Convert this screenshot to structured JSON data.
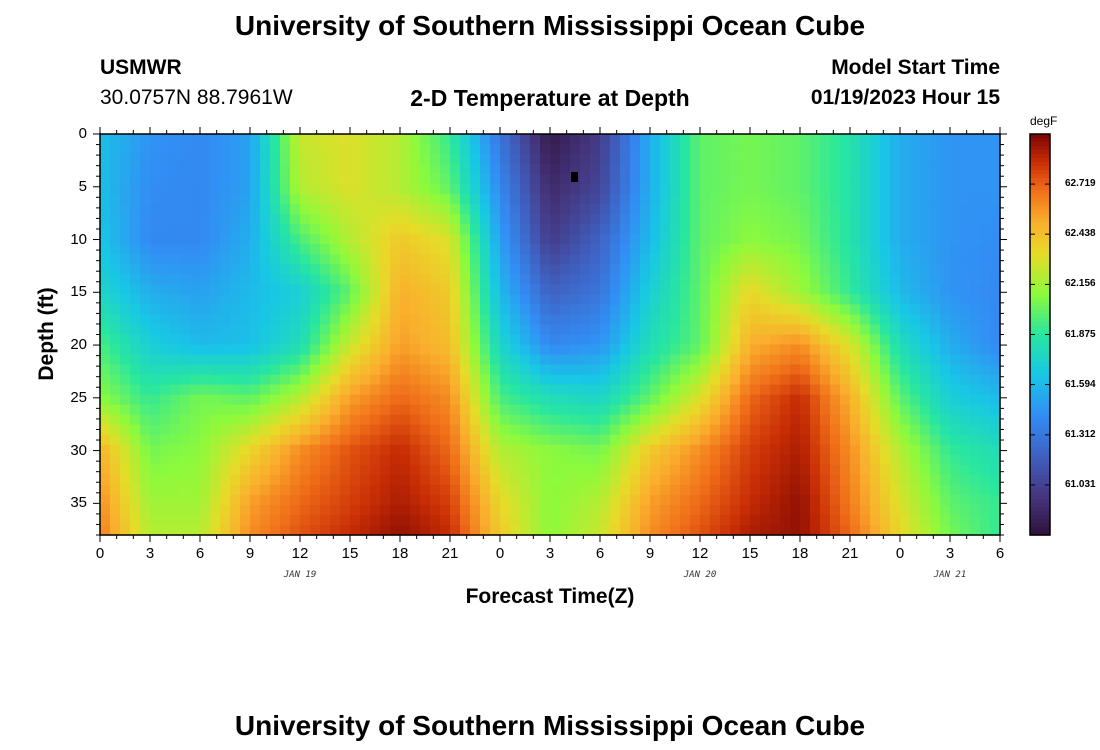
{
  "header": {
    "title_top": "University of Southern Mississippi Ocean Cube",
    "title_bottom": "University of Southern Mississippi Ocean Cube",
    "station": "USMWR",
    "coords": "30.0757N  88.7961W",
    "plot_title": "2-D Temperature at Depth",
    "model_start_label": "Model Start Time",
    "model_start_value": "01/19/2023 Hour 15"
  },
  "chart_data": {
    "type": "heatmap",
    "title": "2-D Temperature at Depth",
    "xlabel": "Forecast Time(Z)",
    "ylabel": "Depth (ft)",
    "x_tick_labels": [
      "0",
      "3",
      "6",
      "9",
      "12",
      "15",
      "18",
      "21",
      "0",
      "3",
      "6",
      "9",
      "12",
      "15",
      "18",
      "21",
      "0",
      "3",
      "6"
    ],
    "x_hours_since_start": [
      0,
      3,
      6,
      9,
      12,
      15,
      18,
      21,
      24,
      27,
      30,
      33,
      36,
      39,
      42,
      45,
      48,
      51,
      54
    ],
    "day_labels": [
      {
        "label": "JAN 19",
        "hour": 12
      },
      {
        "label": "JAN 20",
        "hour": 36
      },
      {
        "label": "JAN 21",
        "hour": 51
      }
    ],
    "xlim": [
      0,
      54
    ],
    "y_tick_labels": [
      "0",
      "5",
      "10",
      "15",
      "20",
      "25",
      "30",
      "35"
    ],
    "y_ticks": [
      0,
      5,
      10,
      15,
      20,
      25,
      30,
      35
    ],
    "ylim": [
      0,
      38
    ],
    "colorbar": {
      "unit": "degF",
      "range": [
        60.75,
        63.0
      ],
      "tick_labels": [
        "62.719",
        "62.438",
        "62.156",
        "61.875",
        "61.594",
        "61.312",
        "61.031"
      ],
      "tick_values": [
        62.719,
        62.438,
        62.156,
        61.875,
        61.594,
        61.312,
        61.031
      ]
    },
    "grid_x_hours": [
      0,
      3,
      6,
      9,
      12,
      15,
      18,
      21,
      24,
      27,
      30,
      33,
      36,
      39,
      42,
      45,
      48,
      51,
      54
    ],
    "grid_y_depths": [
      0,
      5,
      10,
      15,
      20,
      25,
      30,
      35,
      38
    ],
    "values_degF": [
      [
        61.62,
        61.45,
        61.4,
        61.5,
        62.25,
        62.3,
        62.2,
        61.9,
        61.3,
        60.8,
        61.0,
        61.55,
        62.0,
        62.05,
        62.0,
        61.85,
        61.55,
        61.45,
        61.45
      ],
      [
        61.62,
        61.42,
        61.4,
        61.5,
        62.2,
        62.3,
        62.2,
        62.0,
        61.4,
        60.9,
        61.05,
        61.55,
        62.0,
        62.05,
        62.0,
        61.85,
        61.55,
        61.45,
        61.45
      ],
      [
        61.65,
        61.4,
        61.4,
        61.55,
        61.95,
        62.2,
        62.4,
        62.3,
        61.5,
        61.0,
        61.2,
        61.6,
        62.0,
        62.1,
        62.05,
        61.85,
        61.55,
        61.45,
        61.42
      ],
      [
        61.75,
        61.55,
        61.5,
        61.6,
        61.7,
        62.0,
        62.5,
        62.4,
        61.6,
        61.2,
        61.3,
        61.7,
        62.0,
        62.35,
        62.15,
        61.9,
        61.6,
        61.45,
        61.4
      ],
      [
        61.95,
        61.7,
        61.6,
        61.62,
        61.8,
        62.25,
        62.55,
        62.45,
        61.75,
        61.4,
        61.45,
        61.8,
        62.0,
        62.5,
        62.6,
        62.3,
        61.8,
        61.55,
        61.4
      ],
      [
        62.1,
        61.9,
        62.05,
        62.0,
        62.2,
        62.55,
        62.7,
        62.6,
        61.95,
        61.8,
        61.75,
        62.0,
        62.3,
        62.7,
        62.85,
        62.5,
        62.0,
        61.7,
        61.6
      ],
      [
        62.5,
        62.05,
        62.1,
        62.35,
        62.6,
        62.75,
        62.85,
        62.7,
        62.2,
        62.1,
        62.05,
        62.4,
        62.6,
        62.8,
        62.9,
        62.6,
        62.2,
        61.9,
        61.8
      ],
      [
        62.6,
        62.15,
        62.15,
        62.55,
        62.7,
        62.8,
        62.9,
        62.8,
        62.35,
        62.1,
        62.2,
        62.55,
        62.7,
        62.85,
        62.95,
        62.65,
        62.3,
        62.0,
        61.9
      ],
      [
        62.65,
        62.2,
        62.2,
        62.6,
        62.75,
        62.85,
        62.95,
        62.85,
        62.4,
        62.1,
        62.25,
        62.6,
        62.75,
        62.9,
        62.95,
        62.7,
        62.35,
        62.05,
        61.9
      ]
    ]
  }
}
